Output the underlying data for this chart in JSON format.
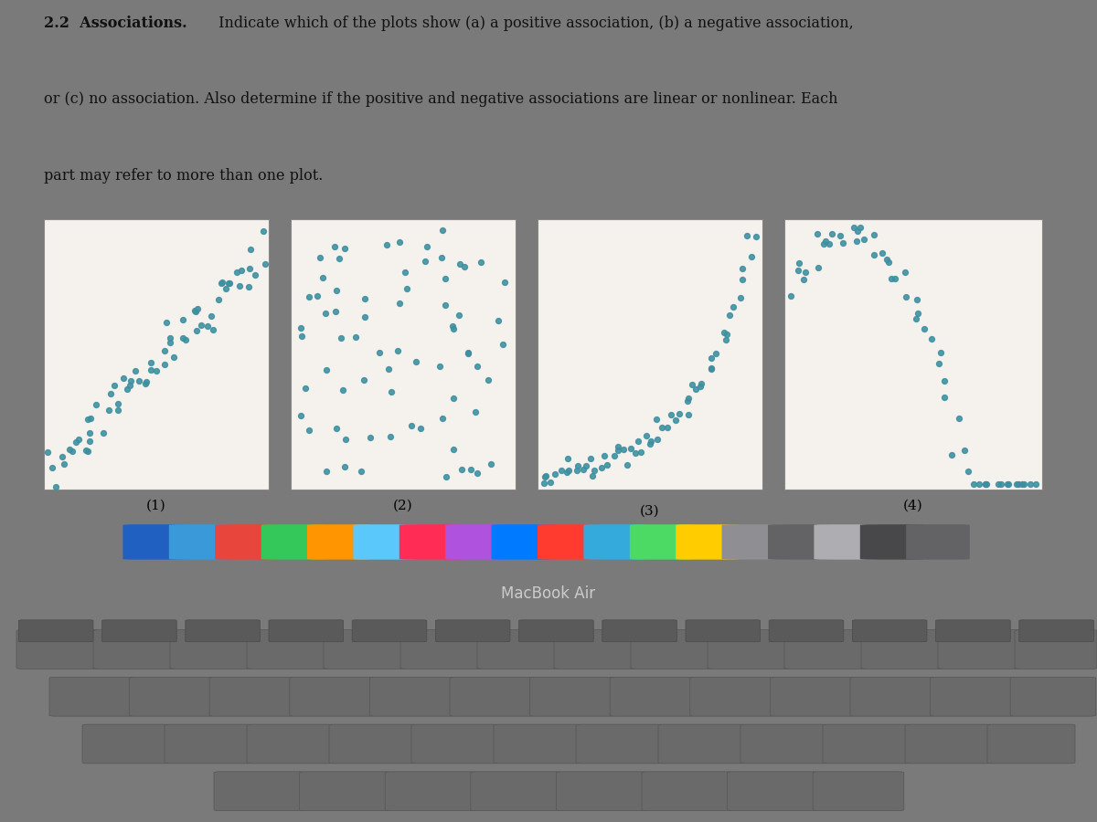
{
  "dot_color": "#3d8fa0",
  "dot_size": 18,
  "page_bg": "#f0ece4",
  "plot_bg": "#f5f2ee",
  "border_color": "#888888",
  "labels": [
    "(1)",
    "(2)",
    "(3)",
    "(4)"
  ],
  "overall_bg": "#7a7a7a",
  "dock_bg": "#1a1a1a",
  "screen_bg": "#c8c4bc",
  "title_bold": "2.2  Associations.",
  "title_line1_rest": " Indicate which of the plots show (a) a positive association, (b) a negative association,",
  "title_line2": "or (c) no association. Also determine if the positive and negative associations are linear or nonlinear. Each",
  "title_line3": "part may refer to more than one plot.",
  "macbook_text": "MacBook Air"
}
